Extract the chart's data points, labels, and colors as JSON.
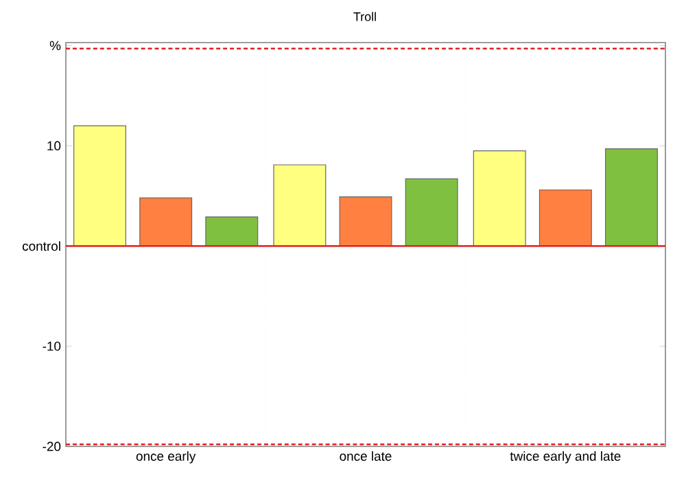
{
  "chart_data": {
    "type": "bar",
    "title": "Troll",
    "categories": [
      "once early",
      "once late",
      "twice early and late"
    ],
    "series": [
      {
        "color": "#ffff80",
        "values": [
          12.0,
          8.1,
          9.5
        ]
      },
      {
        "color": "#ff8040",
        "values": [
          4.8,
          4.9,
          5.6
        ]
      },
      {
        "color": "#80c040",
        "values": [
          2.9,
          6.7,
          9.7
        ]
      }
    ],
    "ylim": [
      -20,
      20.3
    ],
    "yticks": [
      {
        "value": 20,
        "label": "%"
      },
      10,
      {
        "value": 0,
        "label": "control"
      },
      -10,
      -20
    ],
    "ref_lines": [
      {
        "axis": "y",
        "value": 0,
        "color": "#e02020",
        "line_style": "solid"
      },
      {
        "axis": "y",
        "value": 19.7,
        "color": "#e02020",
        "line_style": "dashed"
      },
      {
        "axis": "y",
        "value": -19.8,
        "color": "#e02020",
        "line_style": "dashed"
      }
    ],
    "grid": "x"
  }
}
